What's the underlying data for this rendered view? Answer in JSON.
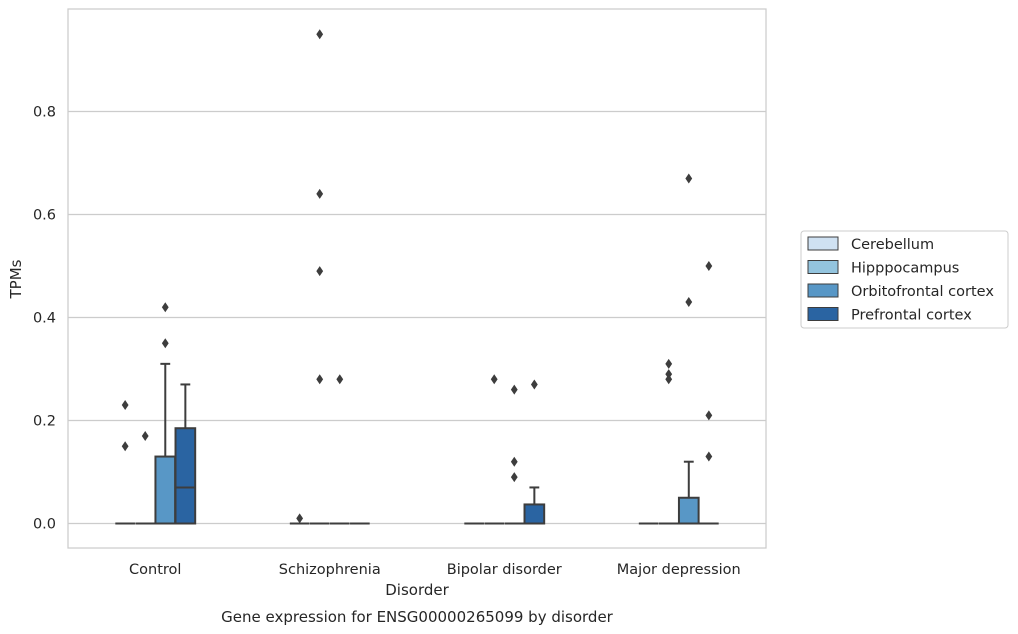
{
  "chart_data": {
    "type": "box",
    "title": "",
    "caption": "Gene expression for ENSG00000265099 by disorder",
    "xlabel": "Disorder",
    "ylabel": "TPMs",
    "ylim": [
      -0.045,
      0.99
    ],
    "yticks": [
      0.0,
      0.2,
      0.4,
      0.6,
      0.8
    ],
    "ytick_labels": [
      "0.0",
      "0.2",
      "0.4",
      "0.6",
      "0.8"
    ],
    "grid": "horizontal",
    "legend": "right",
    "categories": [
      "Control",
      "Schizophrenia",
      "Bipolar disorder",
      "Major depression"
    ],
    "series": [
      {
        "name": "Cerebellum",
        "color": "#cfe1f2",
        "boxes": [
          {
            "q1": 0,
            "median": 0,
            "q3": 0,
            "whislo": 0,
            "whishi": 0,
            "fliers": [
              0.23,
              0.15
            ]
          },
          {
            "q1": 0,
            "median": 0,
            "q3": 0,
            "whislo": 0,
            "whishi": 0,
            "fliers": [
              0.01
            ]
          },
          {
            "q1": 0,
            "median": 0,
            "q3": 0,
            "whislo": 0,
            "whishi": 0,
            "fliers": []
          },
          {
            "q1": 0,
            "median": 0,
            "q3": 0,
            "whislo": 0,
            "whishi": 0,
            "fliers": []
          }
        ]
      },
      {
        "name": "Hipppocampus",
        "color": "#93c4de",
        "boxes": [
          {
            "q1": 0,
            "median": 0,
            "q3": 0,
            "whislo": 0,
            "whishi": 0,
            "fliers": [
              0.17
            ]
          },
          {
            "q1": 0,
            "median": 0,
            "q3": 0,
            "whislo": 0,
            "whishi": 0,
            "fliers": [
              0.49,
              0.95,
              0.64,
              0.28
            ]
          },
          {
            "q1": 0,
            "median": 0,
            "q3": 0,
            "whislo": 0,
            "whishi": 0,
            "fliers": [
              0.28
            ]
          },
          {
            "q1": 0,
            "median": 0,
            "q3": 0,
            "whislo": 0,
            "whishi": 0,
            "fliers": [
              0.31,
              0.29,
              0.28
            ]
          }
        ]
      },
      {
        "name": "Orbitofrontal cortex",
        "color": "#5897c6",
        "boxes": [
          {
            "q1": 0,
            "median": 0,
            "q3": 0.13,
            "whislo": 0,
            "whishi": 0.31,
            "fliers": [
              0.42,
              0.35
            ]
          },
          {
            "q1": 0,
            "median": 0,
            "q3": 0,
            "whislo": 0,
            "whishi": 0,
            "fliers": [
              0.28
            ]
          },
          {
            "q1": 0,
            "median": 0,
            "q3": 0,
            "whislo": 0,
            "whishi": 0,
            "fliers": [
              0.26,
              0.12,
              0.09
            ]
          },
          {
            "q1": 0,
            "median": 0,
            "q3": 0.05,
            "whislo": 0,
            "whishi": 0.12,
            "fliers": [
              0.67,
              0.43
            ]
          }
        ]
      },
      {
        "name": "Prefrontal cortex",
        "color": "#2a64a2",
        "boxes": [
          {
            "q1": 0,
            "median": 0.07,
            "q3": 0.185,
            "whislo": 0,
            "whishi": 0.27,
            "fliers": []
          },
          {
            "q1": 0,
            "median": 0,
            "q3": 0,
            "whislo": 0,
            "whishi": 0,
            "fliers": []
          },
          {
            "q1": 0,
            "median": 0,
            "q3": 0.037,
            "whislo": 0,
            "whishi": 0.07,
            "fliers": [
              0.27
            ]
          },
          {
            "q1": 0,
            "median": 0,
            "q3": 0,
            "whislo": 0,
            "whishi": 0,
            "fliers": [
              0.5,
              0.21,
              0.13
            ]
          }
        ]
      }
    ]
  }
}
